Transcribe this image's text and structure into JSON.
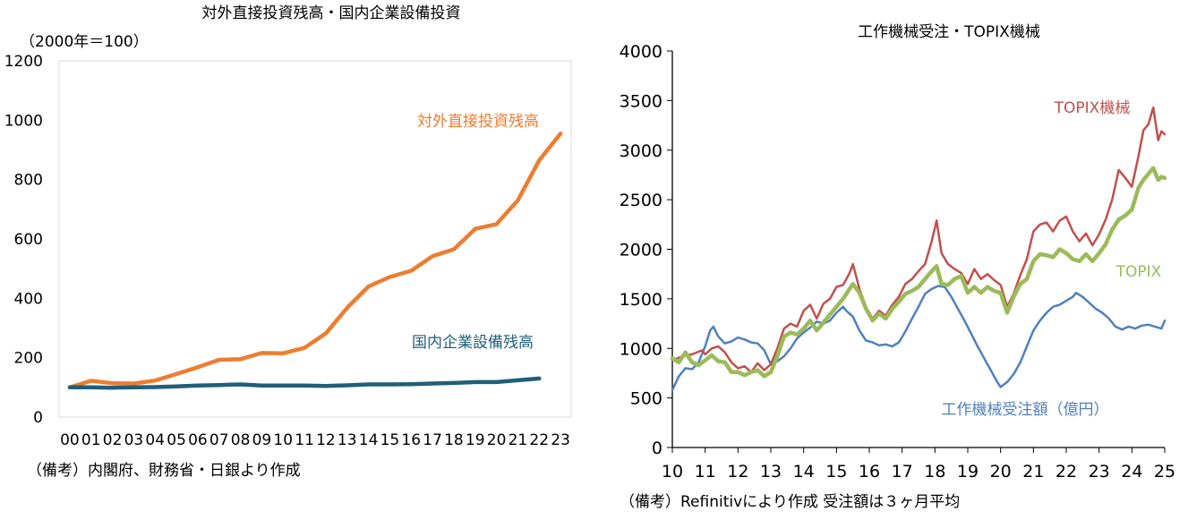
{
  "chart_data": [
    {
      "type": "line",
      "title": "対外直接投資残高・国内企業設備投資",
      "unit_label": "（2000年＝100）",
      "categories": [
        "00",
        "01",
        "02",
        "03",
        "04",
        "05",
        "06",
        "07",
        "08",
        "09",
        "10",
        "11",
        "12",
        "13",
        "14",
        "15",
        "16",
        "17",
        "18",
        "19",
        "20",
        "21",
        "22",
        "23"
      ],
      "ylim": [
        0,
        1200
      ],
      "yticks": [
        0,
        200,
        400,
        600,
        800,
        1000,
        1200
      ],
      "series": [
        {
          "name": "対外直接投資残高",
          "color": "#ED7D31",
          "values": [
            100,
            122,
            114,
            113,
            123,
            145,
            168,
            193,
            195,
            216,
            215,
            233,
            282,
            368,
            440,
            472,
            493,
            542,
            565,
            634,
            650,
            730,
            865,
            955
          ]
        },
        {
          "name": "国内企業設備残高",
          "color": "#1F5F7A",
          "values": [
            100,
            100,
            99,
            100,
            101,
            103,
            106,
            108,
            110,
            106,
            106,
            106,
            105,
            107,
            110,
            110,
            111,
            113,
            115,
            118,
            118,
            124,
            130,
            null
          ]
        }
      ],
      "note": "（備考）内閣府、財務省・日銀より作成"
    },
    {
      "type": "line",
      "title": "工作機械受注・TOPIX機械",
      "ylim": [
        0,
        4000
      ],
      "yticks": [
        0,
        500,
        1000,
        1500,
        2000,
        2500,
        3000,
        3500,
        4000
      ],
      "xlim": [
        10,
        25
      ],
      "xticks": [
        "10",
        "11",
        "12",
        "13",
        "14",
        "15",
        "16",
        "17",
        "18",
        "19",
        "20",
        "21",
        "22",
        "23",
        "24",
        "25"
      ],
      "series": [
        {
          "name": "TOPIX機械",
          "color": "#C0504D",
          "points": [
            [
              10.0,
              880
            ],
            [
              10.3,
              920
            ],
            [
              10.6,
              940
            ],
            [
              10.9,
              980
            ],
            [
              11.0,
              940
            ],
            [
              11.2,
              1000
            ],
            [
              11.4,
              1020
            ],
            [
              11.6,
              960
            ],
            [
              11.8,
              860
            ],
            [
              12.0,
              800
            ],
            [
              12.2,
              820
            ],
            [
              12.4,
              760
            ],
            [
              12.6,
              850
            ],
            [
              12.8,
              780
            ],
            [
              13.0,
              840
            ],
            [
              13.2,
              1000
            ],
            [
              13.4,
              1200
            ],
            [
              13.6,
              1250
            ],
            [
              13.8,
              1220
            ],
            [
              14.0,
              1380
            ],
            [
              14.2,
              1440
            ],
            [
              14.4,
              1300
            ],
            [
              14.6,
              1450
            ],
            [
              14.8,
              1500
            ],
            [
              15.0,
              1620
            ],
            [
              15.2,
              1640
            ],
            [
              15.4,
              1760
            ],
            [
              15.5,
              1850
            ],
            [
              15.7,
              1600
            ],
            [
              15.9,
              1420
            ],
            [
              16.1,
              1300
            ],
            [
              16.3,
              1380
            ],
            [
              16.5,
              1330
            ],
            [
              16.7,
              1440
            ],
            [
              16.9,
              1520
            ],
            [
              17.1,
              1650
            ],
            [
              17.3,
              1700
            ],
            [
              17.5,
              1780
            ],
            [
              17.7,
              1850
            ],
            [
              17.9,
              2080
            ],
            [
              18.05,
              2290
            ],
            [
              18.2,
              1960
            ],
            [
              18.4,
              1850
            ],
            [
              18.6,
              1800
            ],
            [
              18.8,
              1760
            ],
            [
              19.0,
              1650
            ],
            [
              19.2,
              1800
            ],
            [
              19.4,
              1700
            ],
            [
              19.6,
              1750
            ],
            [
              19.8,
              1690
            ],
            [
              20.0,
              1640
            ],
            [
              20.2,
              1420
            ],
            [
              20.4,
              1550
            ],
            [
              20.6,
              1740
            ],
            [
              20.8,
              1900
            ],
            [
              21.0,
              2180
            ],
            [
              21.2,
              2250
            ],
            [
              21.4,
              2270
            ],
            [
              21.6,
              2180
            ],
            [
              21.8,
              2290
            ],
            [
              22.0,
              2330
            ],
            [
              22.2,
              2180
            ],
            [
              22.4,
              2080
            ],
            [
              22.6,
              2160
            ],
            [
              22.8,
              2040
            ],
            [
              23.0,
              2150
            ],
            [
              23.2,
              2300
            ],
            [
              23.4,
              2500
            ],
            [
              23.6,
              2800
            ],
            [
              23.8,
              2720
            ],
            [
              24.0,
              2630
            ],
            [
              24.2,
              2940
            ],
            [
              24.35,
              3200
            ],
            [
              24.5,
              3260
            ],
            [
              24.65,
              3430
            ],
            [
              24.8,
              3100
            ],
            [
              24.9,
              3190
            ],
            [
              25.0,
              3160
            ]
          ]
        },
        {
          "name": "TOPIX",
          "color": "#9BBB59",
          "points": [
            [
              10.0,
              900
            ],
            [
              10.2,
              860
            ],
            [
              10.4,
              960
            ],
            [
              10.6,
              860
            ],
            [
              10.8,
              830
            ],
            [
              11.0,
              880
            ],
            [
              11.2,
              930
            ],
            [
              11.4,
              870
            ],
            [
              11.6,
              860
            ],
            [
              11.8,
              760
            ],
            [
              12.0,
              760
            ],
            [
              12.2,
              730
            ],
            [
              12.4,
              760
            ],
            [
              12.6,
              780
            ],
            [
              12.8,
              720
            ],
            [
              13.0,
              760
            ],
            [
              13.2,
              920
            ],
            [
              13.4,
              1120
            ],
            [
              13.6,
              1160
            ],
            [
              13.8,
              1140
            ],
            [
              14.0,
              1200
            ],
            [
              14.2,
              1280
            ],
            [
              14.4,
              1180
            ],
            [
              14.6,
              1260
            ],
            [
              14.8,
              1340
            ],
            [
              15.0,
              1420
            ],
            [
              15.2,
              1500
            ],
            [
              15.4,
              1600
            ],
            [
              15.5,
              1650
            ],
            [
              15.7,
              1560
            ],
            [
              15.9,
              1400
            ],
            [
              16.1,
              1280
            ],
            [
              16.3,
              1350
            ],
            [
              16.5,
              1300
            ],
            [
              16.7,
              1400
            ],
            [
              16.9,
              1470
            ],
            [
              17.1,
              1550
            ],
            [
              17.3,
              1580
            ],
            [
              17.5,
              1620
            ],
            [
              17.7,
              1700
            ],
            [
              17.9,
              1780
            ],
            [
              18.05,
              1830
            ],
            [
              18.2,
              1650
            ],
            [
              18.4,
              1640
            ],
            [
              18.6,
              1700
            ],
            [
              18.8,
              1730
            ],
            [
              19.0,
              1560
            ],
            [
              19.2,
              1620
            ],
            [
              19.4,
              1560
            ],
            [
              19.6,
              1620
            ],
            [
              19.8,
              1580
            ],
            [
              20.0,
              1560
            ],
            [
              20.2,
              1360
            ],
            [
              20.4,
              1520
            ],
            [
              20.6,
              1650
            ],
            [
              20.8,
              1700
            ],
            [
              21.0,
              1880
            ],
            [
              21.2,
              1950
            ],
            [
              21.4,
              1940
            ],
            [
              21.6,
              1920
            ],
            [
              21.8,
              2000
            ],
            [
              22.0,
              1960
            ],
            [
              22.2,
              1900
            ],
            [
              22.4,
              1880
            ],
            [
              22.6,
              1950
            ],
            [
              22.8,
              1880
            ],
            [
              23.0,
              1960
            ],
            [
              23.2,
              2050
            ],
            [
              23.4,
              2200
            ],
            [
              23.6,
              2300
            ],
            [
              23.8,
              2340
            ],
            [
              24.0,
              2400
            ],
            [
              24.2,
              2620
            ],
            [
              24.35,
              2700
            ],
            [
              24.5,
              2760
            ],
            [
              24.65,
              2820
            ],
            [
              24.8,
              2700
            ],
            [
              24.9,
              2730
            ],
            [
              25.0,
              2720
            ]
          ]
        },
        {
          "name": "工作機械受注額（億円）",
          "color": "#4F81BD",
          "points": [
            [
              10.0,
              580
            ],
            [
              10.2,
              720
            ],
            [
              10.4,
              800
            ],
            [
              10.6,
              790
            ],
            [
              10.8,
              860
            ],
            [
              11.0,
              1020
            ],
            [
              11.15,
              1180
            ],
            [
              11.25,
              1220
            ],
            [
              11.4,
              1120
            ],
            [
              11.6,
              1050
            ],
            [
              11.8,
              1070
            ],
            [
              12.0,
              1110
            ],
            [
              12.2,
              1090
            ],
            [
              12.4,
              1060
            ],
            [
              12.6,
              1050
            ],
            [
              12.8,
              980
            ],
            [
              13.0,
              840
            ],
            [
              13.2,
              870
            ],
            [
              13.4,
              920
            ],
            [
              13.6,
              1000
            ],
            [
              13.8,
              1100
            ],
            [
              14.0,
              1160
            ],
            [
              14.2,
              1210
            ],
            [
              14.4,
              1270
            ],
            [
              14.6,
              1250
            ],
            [
              14.8,
              1280
            ],
            [
              15.0,
              1360
            ],
            [
              15.2,
              1420
            ],
            [
              15.3,
              1380
            ],
            [
              15.5,
              1320
            ],
            [
              15.7,
              1180
            ],
            [
              15.9,
              1080
            ],
            [
              16.1,
              1060
            ],
            [
              16.3,
              1030
            ],
            [
              16.5,
              1040
            ],
            [
              16.7,
              1020
            ],
            [
              16.9,
              1060
            ],
            [
              17.1,
              1170
            ],
            [
              17.3,
              1300
            ],
            [
              17.5,
              1420
            ],
            [
              17.7,
              1550
            ],
            [
              17.9,
              1600
            ],
            [
              18.1,
              1630
            ],
            [
              18.3,
              1620
            ],
            [
              18.5,
              1520
            ],
            [
              18.7,
              1400
            ],
            [
              18.9,
              1280
            ],
            [
              19.1,
              1150
            ],
            [
              19.3,
              1020
            ],
            [
              19.5,
              900
            ],
            [
              19.7,
              780
            ],
            [
              19.9,
              660
            ],
            [
              20.0,
              610
            ],
            [
              20.2,
              660
            ],
            [
              20.4,
              740
            ],
            [
              20.6,
              860
            ],
            [
              20.8,
              1020
            ],
            [
              21.0,
              1180
            ],
            [
              21.2,
              1280
            ],
            [
              21.4,
              1360
            ],
            [
              21.6,
              1420
            ],
            [
              21.8,
              1440
            ],
            [
              22.0,
              1480
            ],
            [
              22.2,
              1520
            ],
            [
              22.3,
              1560
            ],
            [
              22.5,
              1520
            ],
            [
              22.7,
              1460
            ],
            [
              22.9,
              1400
            ],
            [
              23.1,
              1360
            ],
            [
              23.3,
              1300
            ],
            [
              23.5,
              1220
            ],
            [
              23.7,
              1190
            ],
            [
              23.9,
              1220
            ],
            [
              24.1,
              1200
            ],
            [
              24.3,
              1230
            ],
            [
              24.5,
              1240
            ],
            [
              24.7,
              1220
            ],
            [
              24.9,
              1200
            ],
            [
              25.0,
              1280
            ]
          ]
        }
      ],
      "note": "（備考）Refinitivにより作成 受注額は３ヶ月平均"
    }
  ]
}
